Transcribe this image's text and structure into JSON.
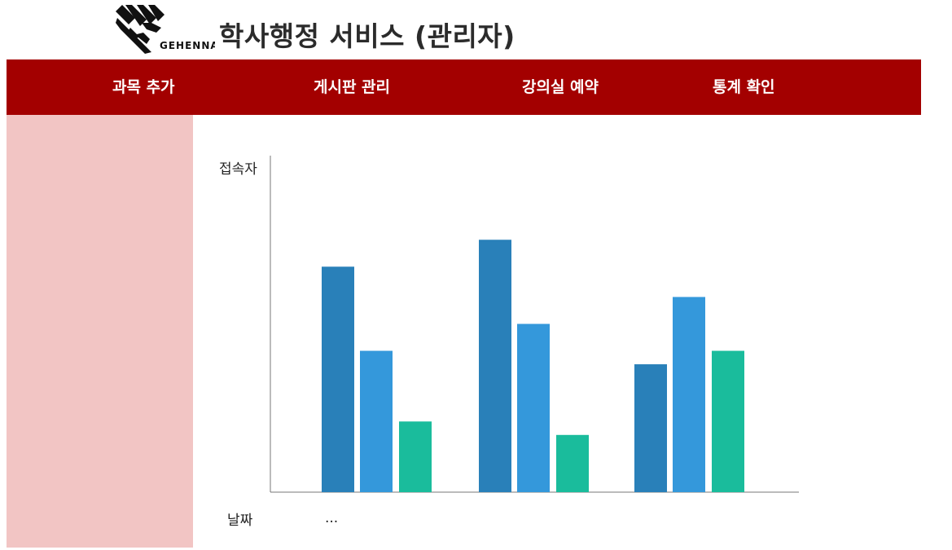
{
  "header": {
    "logo_text": "GEHENNA",
    "title": "학사행정 서비스 (관리자)"
  },
  "nav": {
    "items": [
      {
        "label": "과목 추가"
      },
      {
        "label": "게시판 관리"
      },
      {
        "label": "강의실 예약"
      },
      {
        "label": "통계 확인"
      }
    ]
  },
  "colors": {
    "nav_bg": "#a30000",
    "sidebar_bg": "#f2c5c4",
    "series_1": "#2980b9",
    "series_2": "#3498db",
    "series_3": "#1abc9c"
  },
  "chart_data": {
    "type": "bar",
    "title": "",
    "ylabel": "접속자",
    "xlabel": "날짜",
    "x_tick_text": "...",
    "categories": [
      "",
      "",
      ""
    ],
    "series": [
      {
        "values": [
          67,
          75,
          38
        ]
      },
      {
        "values": [
          42,
          50,
          58
        ]
      },
      {
        "values": [
          21,
          17,
          42
        ]
      }
    ],
    "ylim": [
      0,
      100
    ],
    "grid": false,
    "legend": "none"
  }
}
